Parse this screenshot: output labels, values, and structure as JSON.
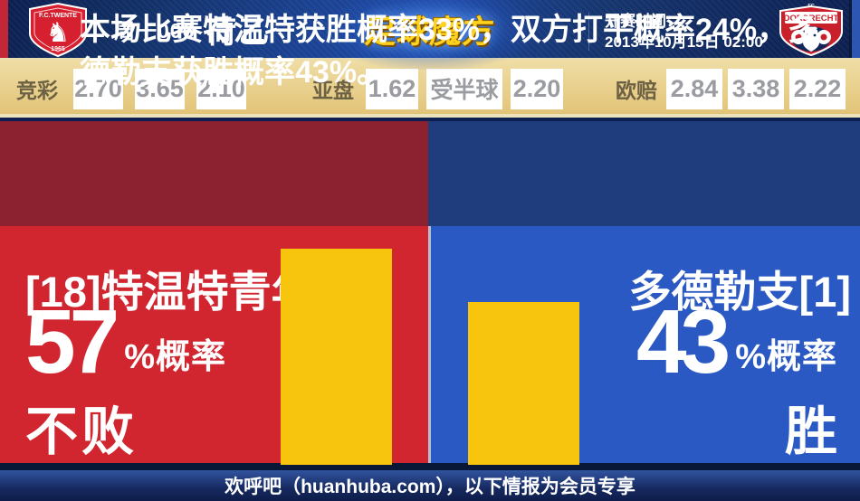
{
  "header": {
    "match_code": "周一006",
    "league_name": "荷乙",
    "brand_logo_text": "足球魔方",
    "kickoff_label": "开赛时间：",
    "kickoff_datetime": "2013年10月15日 02:00",
    "home_crest": {
      "banner_text": "F.C.TWENTE",
      "year_text": "1965"
    },
    "away_crest": {
      "fc_text": "FC",
      "banner_text": "DORDRECHT"
    }
  },
  "odds_bar": {
    "jingcai": {
      "label": "竞彩",
      "home": "2.70",
      "draw": "3.65",
      "away": "2.10"
    },
    "yapan": {
      "label": "亚盘",
      "home": "1.62",
      "handicap": "受半球",
      "away": "2.20"
    },
    "oupei": {
      "label": "欧赔",
      "home": "2.84",
      "draw": "3.38",
      "away": "2.22"
    }
  },
  "summary": {
    "text": "本场比赛特温特获胜概率33%，双方打平概率24%，多德勒支获胜概率43%。"
  },
  "prediction": {
    "home": {
      "team_label": "[18]特温特青年",
      "probability": 57,
      "probability_value": "57",
      "probability_unit": "%概率",
      "outcome": "不败"
    },
    "away": {
      "team_label": "多德勒支[1]",
      "probability": 43,
      "probability_value": "43",
      "probability_unit": "%概率",
      "outcome": "胜"
    }
  },
  "footer": {
    "text": "欢呼吧（huanhuba.com），以下情报为会员专享"
  },
  "colors": {
    "home_red": "#d1262f",
    "away_blue": "#2b59c3",
    "dark_red_band": "#8c2130",
    "dark_blue_band": "#1f3d7d",
    "bar_yellow": "#f7c50d",
    "odds_bar_gold": "#e5c87f",
    "brand_gold": "#ffd21e"
  }
}
